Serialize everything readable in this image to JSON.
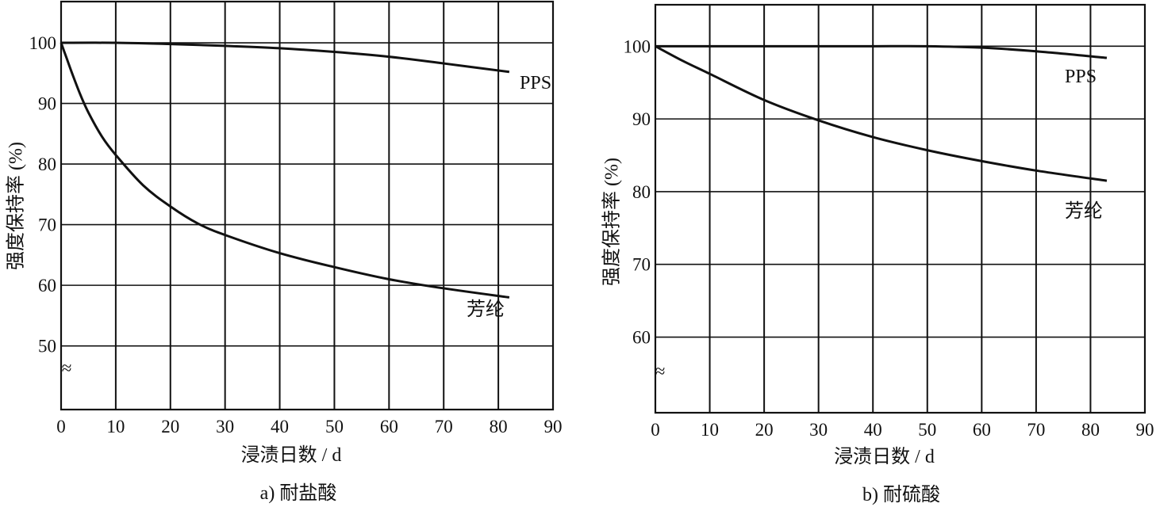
{
  "chart_data": [
    {
      "type": "line",
      "caption": "a) 耐盐酸",
      "xlabel": "浸渍日数 / d",
      "ylabel": "强度保持率 (%)",
      "xlim": [
        0,
        90
      ],
      "ylim": [
        40,
        107
      ],
      "axis_break": "≈",
      "x_ticks": [
        "0",
        "10",
        "20",
        "30",
        "40",
        "50",
        "60",
        "70",
        "80",
        "90"
      ],
      "y_ticks": [
        "100",
        "90",
        "80",
        "70",
        "60",
        "50"
      ],
      "y_tick_values": [
        100,
        90,
        80,
        70,
        60,
        50
      ],
      "grid": true,
      "series": [
        {
          "name": "PPS",
          "x": [
            0,
            10,
            20,
            30,
            40,
            50,
            60,
            70,
            82
          ],
          "y": [
            100,
            100,
            99.8,
            99.5,
            99.1,
            98.5,
            97.7,
            96.6,
            95.2
          ]
        },
        {
          "name": "芳纶",
          "x": [
            0,
            1,
            2,
            3.5,
            5,
            7.5,
            10,
            15,
            20,
            25,
            30,
            40,
            50,
            60,
            70,
            82
          ],
          "y": [
            100,
            97.5,
            95,
            91.5,
            88.5,
            84.5,
            81.5,
            76.5,
            73,
            70.2,
            68.3,
            65.3,
            63,
            61,
            59.5,
            58
          ]
        }
      ]
    },
    {
      "type": "line",
      "caption": "b) 耐硫酸",
      "xlabel": "浸渍日数 / d",
      "ylabel": "强度保持率 (%)",
      "xlim": [
        0,
        90
      ],
      "ylim": [
        50,
        106
      ],
      "axis_break": "≈",
      "x_ticks": [
        "0",
        "10",
        "20",
        "30",
        "40",
        "50",
        "60",
        "70",
        "80",
        "90"
      ],
      "y_ticks": [
        "100",
        "90",
        "80",
        "70",
        "60"
      ],
      "y_tick_values": [
        100,
        90,
        80,
        70,
        60
      ],
      "grid": true,
      "series": [
        {
          "name": "PPS",
          "x": [
            0,
            10,
            20,
            30,
            40,
            50,
            60,
            70,
            83
          ],
          "y": [
            100,
            100,
            100,
            100,
            100,
            100,
            99.8,
            99.3,
            98.4
          ]
        },
        {
          "name": "芳纶",
          "x": [
            0,
            5,
            10,
            20,
            30,
            40,
            50,
            60,
            70,
            83
          ],
          "y": [
            100,
            98,
            96.2,
            92.6,
            89.8,
            87.5,
            85.7,
            84.2,
            82.9,
            81.5
          ]
        }
      ]
    }
  ]
}
